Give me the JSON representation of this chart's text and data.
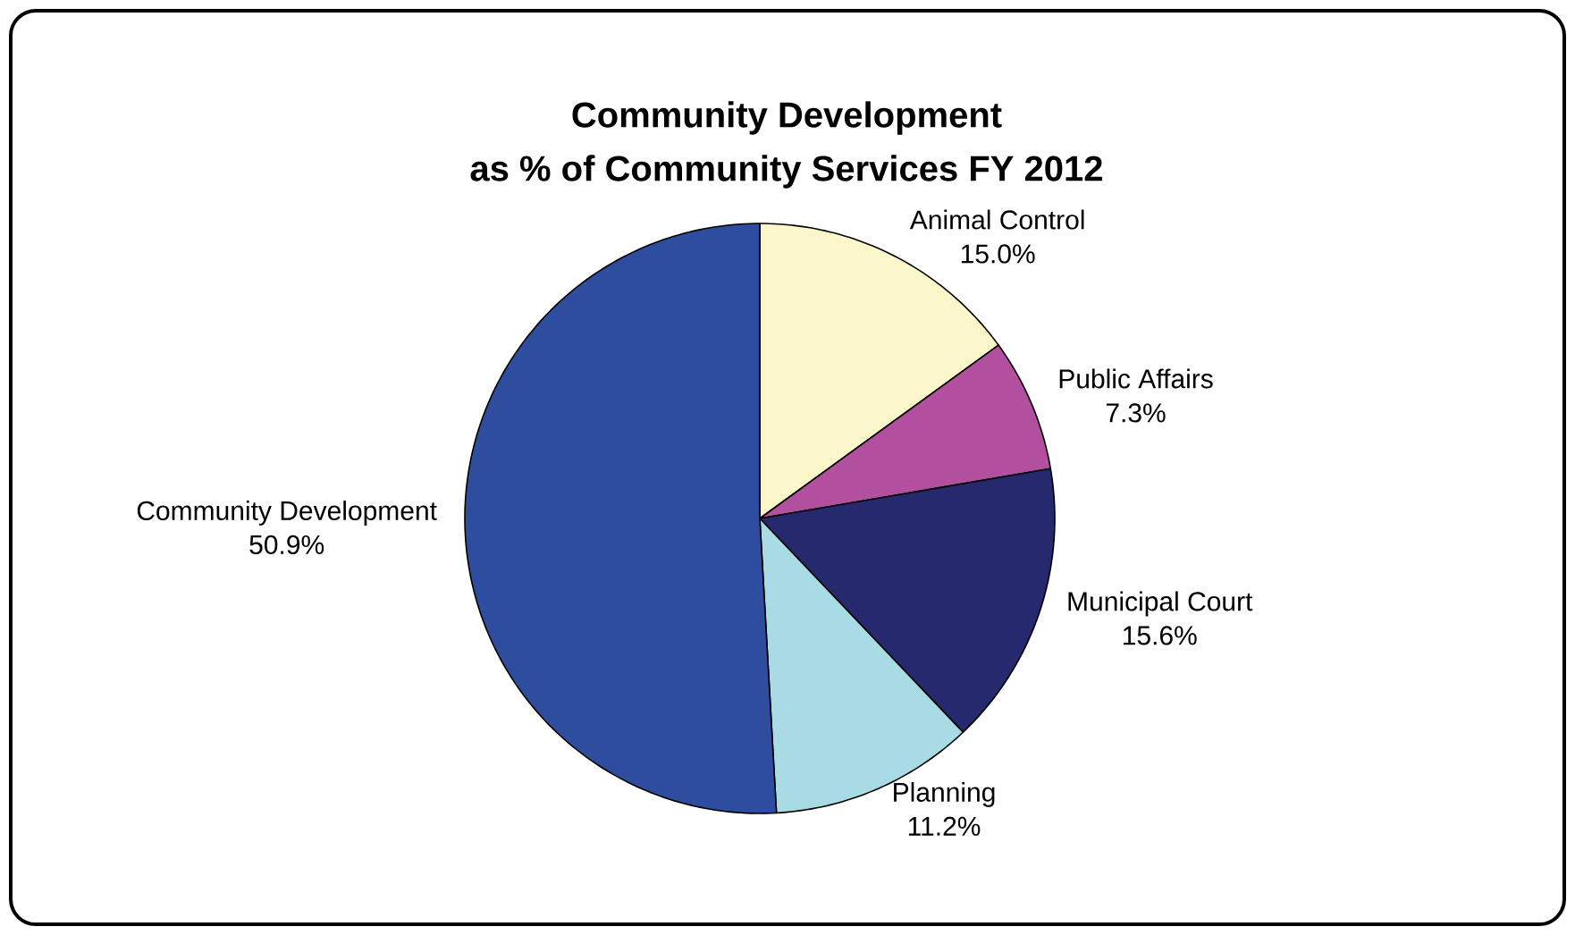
{
  "chart_data": {
    "type": "pie",
    "title": "Community Development",
    "subtitle": "as % of Community Services FY 2012",
    "categories": [
      "Animal Control",
      "Public Affairs",
      "Municipal Court",
      "Planning",
      "Community Development"
    ],
    "values": [
      15.0,
      7.3,
      15.6,
      11.2,
      50.9
    ],
    "colors": [
      "#fbf7cb",
      "#b24f9e",
      "#26296e",
      "#a8dbe3",
      "#2f4d9f"
    ],
    "value_labels": [
      "15.0%",
      "7.3%",
      "15.6%",
      "11.2%",
      "50.9%"
    ]
  }
}
